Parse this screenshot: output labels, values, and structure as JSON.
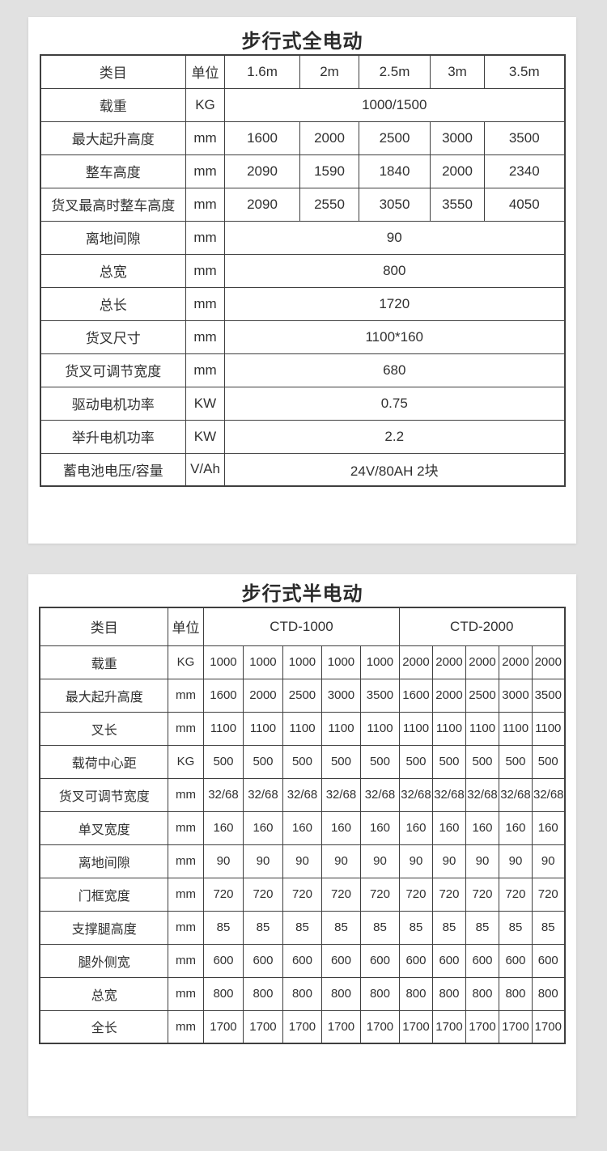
{
  "page": {
    "background_color": "#e1e1e1",
    "card_color": "#ffffff",
    "border_color": "#3f3f3f",
    "text_color": "#303030"
  },
  "tables": [
    {
      "title": "步行式全电动",
      "header": [
        {
          "label": "类目"
        },
        {
          "label": "单位"
        },
        {
          "label": "1.6m"
        },
        {
          "label": "2m"
        },
        {
          "label": "2.5m"
        },
        {
          "label": "3m"
        },
        {
          "label": "3.5m"
        }
      ],
      "rows": [
        {
          "label": "载重",
          "unit": "KG",
          "cells": [
            {
              "text": "1000/1500",
              "span": 5
            }
          ]
        },
        {
          "label": "最大起升高度",
          "unit": "mm",
          "cells": [
            {
              "text": "1600"
            },
            {
              "text": "2000"
            },
            {
              "text": "2500"
            },
            {
              "text": "3000"
            },
            {
              "text": "3500"
            }
          ]
        },
        {
          "label": "整车高度",
          "unit": "mm",
          "cells": [
            {
              "text": "2090"
            },
            {
              "text": "1590"
            },
            {
              "text": "1840"
            },
            {
              "text": "2000"
            },
            {
              "text": "2340"
            }
          ]
        },
        {
          "label": "货叉最高时整车高度",
          "unit": "mm",
          "cells": [
            {
              "text": "2090"
            },
            {
              "text": "2550"
            },
            {
              "text": "3050"
            },
            {
              "text": "3550"
            },
            {
              "text": "4050"
            }
          ]
        },
        {
          "label": "离地间隙",
          "unit": "mm",
          "cells": [
            {
              "text": "90",
              "span": 5
            }
          ]
        },
        {
          "label": "总宽",
          "unit": "mm",
          "cells": [
            {
              "text": "800",
              "span": 5
            }
          ]
        },
        {
          "label": "总长",
          "unit": "mm",
          "cells": [
            {
              "text": "1720",
              "span": 5
            }
          ]
        },
        {
          "label": "货叉尺寸",
          "unit": "mm",
          "cells": [
            {
              "text": "1100*160",
              "span": 5
            }
          ]
        },
        {
          "label": "货叉可调节宽度",
          "unit": "mm",
          "cells": [
            {
              "text": "680",
              "span": 5
            }
          ]
        },
        {
          "label": "驱动电机功率",
          "unit": "KW",
          "cells": [
            {
              "text": "0.75",
              "span": 5
            }
          ]
        },
        {
          "label": "举升电机功率",
          "unit": "KW",
          "cells": [
            {
              "text": "2.2",
              "span": 5
            }
          ]
        },
        {
          "label": "蓄电池电压/容量",
          "unit": "V/Ah",
          "cells": [
            {
              "text": "24V/80AH 2块",
              "span": 5
            }
          ]
        }
      ]
    },
    {
      "title": "步行式半电动",
      "header": [
        {
          "label": "类目"
        },
        {
          "label": "单位"
        },
        {
          "label": "CTD-1000",
          "span": 5
        },
        {
          "label": "CTD-2000",
          "span": 5
        }
      ],
      "rows": [
        {
          "label": "载重",
          "unit": "KG",
          "cells": [
            {
              "text": "1000"
            },
            {
              "text": "1000"
            },
            {
              "text": "1000"
            },
            {
              "text": "1000"
            },
            {
              "text": "1000"
            },
            {
              "text": "2000"
            },
            {
              "text": "2000"
            },
            {
              "text": "2000"
            },
            {
              "text": "2000"
            },
            {
              "text": "2000"
            }
          ]
        },
        {
          "label": "最大起升高度",
          "unit": "mm",
          "cells": [
            {
              "text": "1600"
            },
            {
              "text": "2000"
            },
            {
              "text": "2500"
            },
            {
              "text": "3000"
            },
            {
              "text": "3500"
            },
            {
              "text": "1600"
            },
            {
              "text": "2000"
            },
            {
              "text": "2500"
            },
            {
              "text": "3000"
            },
            {
              "text": "3500"
            }
          ]
        },
        {
          "label": "叉长",
          "unit": "mm",
          "cells": [
            {
              "text": "1100"
            },
            {
              "text": "1100"
            },
            {
              "text": "1100"
            },
            {
              "text": "1100"
            },
            {
              "text": "1100"
            },
            {
              "text": "1100"
            },
            {
              "text": "1100"
            },
            {
              "text": "1100"
            },
            {
              "text": "1100"
            },
            {
              "text": "1100"
            }
          ]
        },
        {
          "label": "载荷中心距",
          "unit": "KG",
          "cells": [
            {
              "text": "500"
            },
            {
              "text": "500"
            },
            {
              "text": "500"
            },
            {
              "text": "500"
            },
            {
              "text": "500"
            },
            {
              "text": "500"
            },
            {
              "text": "500"
            },
            {
              "text": "500"
            },
            {
              "text": "500"
            },
            {
              "text": "500"
            }
          ]
        },
        {
          "label": "货叉可调节宽度",
          "unit": "mm",
          "cells": [
            {
              "text": "32/68"
            },
            {
              "text": "32/68"
            },
            {
              "text": "32/68"
            },
            {
              "text": "32/68"
            },
            {
              "text": "32/68"
            },
            {
              "text": "32/68"
            },
            {
              "text": "32/68"
            },
            {
              "text": "32/68"
            },
            {
              "text": "32/68"
            },
            {
              "text": "32/68"
            }
          ]
        },
        {
          "label": "单叉宽度",
          "unit": "mm",
          "cells": [
            {
              "text": "160"
            },
            {
              "text": "160"
            },
            {
              "text": "160"
            },
            {
              "text": "160"
            },
            {
              "text": "160"
            },
            {
              "text": "160"
            },
            {
              "text": "160"
            },
            {
              "text": "160"
            },
            {
              "text": "160"
            },
            {
              "text": "160"
            }
          ]
        },
        {
          "label": "离地间隙",
          "unit": "mm",
          "cells": [
            {
              "text": "90"
            },
            {
              "text": "90"
            },
            {
              "text": "90"
            },
            {
              "text": "90"
            },
            {
              "text": "90"
            },
            {
              "text": "90"
            },
            {
              "text": "90"
            },
            {
              "text": "90"
            },
            {
              "text": "90"
            },
            {
              "text": "90"
            }
          ]
        },
        {
          "label": "门框宽度",
          "unit": "mm",
          "cells": [
            {
              "text": "720"
            },
            {
              "text": "720"
            },
            {
              "text": "720"
            },
            {
              "text": "720"
            },
            {
              "text": "720"
            },
            {
              "text": "720"
            },
            {
              "text": "720"
            },
            {
              "text": "720"
            },
            {
              "text": "720"
            },
            {
              "text": "720"
            }
          ]
        },
        {
          "label": "支撑腿高度",
          "unit": "mm",
          "cells": [
            {
              "text": "85"
            },
            {
              "text": "85"
            },
            {
              "text": "85"
            },
            {
              "text": "85"
            },
            {
              "text": "85"
            },
            {
              "text": "85"
            },
            {
              "text": "85"
            },
            {
              "text": "85"
            },
            {
              "text": "85"
            },
            {
              "text": "85"
            }
          ]
        },
        {
          "label": "腿外侧宽",
          "unit": "mm",
          "cells": [
            {
              "text": "600"
            },
            {
              "text": "600"
            },
            {
              "text": "600"
            },
            {
              "text": "600"
            },
            {
              "text": "600"
            },
            {
              "text": "600"
            },
            {
              "text": "600"
            },
            {
              "text": "600"
            },
            {
              "text": "600"
            },
            {
              "text": "600"
            }
          ]
        },
        {
          "label": "总宽",
          "unit": "mm",
          "cells": [
            {
              "text": "800"
            },
            {
              "text": "800"
            },
            {
              "text": "800"
            },
            {
              "text": "800"
            },
            {
              "text": "800"
            },
            {
              "text": "800"
            },
            {
              "text": "800"
            },
            {
              "text": "800"
            },
            {
              "text": "800"
            },
            {
              "text": "800"
            }
          ]
        },
        {
          "label": "全长",
          "unit": "mm",
          "cells": [
            {
              "text": "1700"
            },
            {
              "text": "1700"
            },
            {
              "text": "1700"
            },
            {
              "text": "1700"
            },
            {
              "text": "1700"
            },
            {
              "text": "1700"
            },
            {
              "text": "1700"
            },
            {
              "text": "1700"
            },
            {
              "text": "1700"
            },
            {
              "text": "1700"
            }
          ]
        }
      ]
    }
  ]
}
